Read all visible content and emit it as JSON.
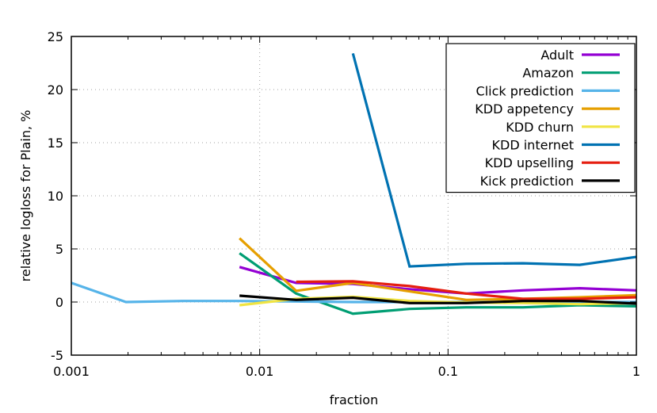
{
  "chart_data": {
    "type": "line",
    "title": "",
    "xlabel": "fraction",
    "ylabel": "relative logloss for Plain, %",
    "xscale": "log",
    "xlim": [
      0.001,
      1
    ],
    "ylim": [
      -5,
      25
    ],
    "grid": true,
    "legend_position": "top-right",
    "x_ticks": [
      {
        "value": 0.001,
        "label": "0.001"
      },
      {
        "value": 0.01,
        "label": "0.01"
      },
      {
        "value": 0.1,
        "label": "0.1"
      },
      {
        "value": 1,
        "label": "1"
      }
    ],
    "y_ticks": [
      {
        "value": -5,
        "label": "-5"
      },
      {
        "value": 0,
        "label": "0"
      },
      {
        "value": 5,
        "label": "5"
      },
      {
        "value": 10,
        "label": "10"
      },
      {
        "value": 15,
        "label": "15"
      },
      {
        "value": 20,
        "label": "20"
      },
      {
        "value": 25,
        "label": "25"
      }
    ],
    "series": [
      {
        "name": "Adult",
        "color": "#9400d3",
        "x": [
          0.0078125,
          0.015625,
          0.03125,
          0.0625,
          0.125,
          0.25,
          0.5,
          1
        ],
        "values": [
          3.3,
          1.8,
          1.7,
          1.2,
          0.8,
          1.1,
          1.3,
          1.1
        ]
      },
      {
        "name": "Amazon",
        "color": "#009e73",
        "x": [
          0.0078125,
          0.015625,
          0.03125,
          0.0625,
          0.125,
          0.25,
          0.5,
          1
        ],
        "values": [
          4.6,
          0.8,
          -1.1,
          -0.65,
          -0.5,
          -0.5,
          -0.3,
          -0.4
        ]
      },
      {
        "name": "Click prediction",
        "color": "#56b4e9",
        "x": [
          0.001,
          0.00195,
          0.0039,
          0.0078125,
          0.015625,
          0.03125,
          0.0625,
          0.125,
          0.25,
          0.5,
          1
        ],
        "values": [
          1.8,
          0.0,
          0.1,
          0.1,
          0.05,
          0.0,
          0.0,
          0.0,
          0.0,
          0.0,
          0.0
        ]
      },
      {
        "name": "KDD appetency",
        "color": "#e69f00",
        "x": [
          0.0078125,
          0.015625,
          0.03125,
          0.0625,
          0.125,
          0.25,
          0.5,
          1
        ],
        "values": [
          6.0,
          1.05,
          1.8,
          1.0,
          0.2,
          0.3,
          0.45,
          0.65
        ]
      },
      {
        "name": "KDD churn",
        "color": "#f0e442",
        "x": [
          0.0078125,
          0.015625,
          0.03125,
          0.0625,
          0.125,
          0.25,
          0.5,
          1
        ],
        "values": [
          -0.3,
          0.3,
          0.5,
          0.1,
          -0.05,
          -0.1,
          -0.2,
          -0.1
        ]
      },
      {
        "name": "KDD internet",
        "color": "#0072b2",
        "x": [
          0.03125,
          0.0625,
          0.125,
          0.25,
          0.5,
          1
        ],
        "values": [
          23.4,
          3.35,
          3.6,
          3.65,
          3.5,
          4.25
        ]
      },
      {
        "name": "KDD upselling",
        "color": "#e51e10",
        "x": [
          0.015625,
          0.03125,
          0.0625,
          0.125,
          0.25,
          0.5,
          1
        ],
        "values": [
          1.9,
          1.95,
          1.5,
          0.8,
          0.3,
          0.3,
          0.45
        ]
      },
      {
        "name": "Kick prediction",
        "color": "#000000",
        "x": [
          0.0078125,
          0.015625,
          0.03125,
          0.0625,
          0.125,
          0.25,
          0.5,
          1
        ],
        "values": [
          0.6,
          0.2,
          0.4,
          -0.1,
          -0.1,
          0.1,
          0.1,
          -0.15
        ]
      }
    ]
  }
}
